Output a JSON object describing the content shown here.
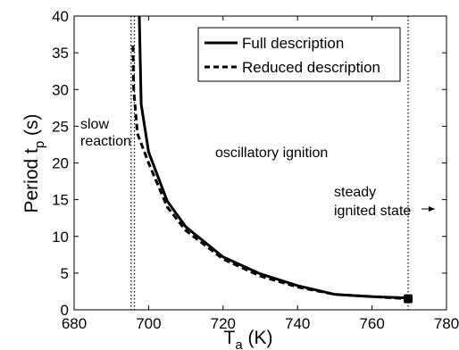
{
  "chart_data": {
    "type": "line",
    "title": "",
    "xlabel": {
      "main": "T",
      "sub": "a",
      "unit": " (K)"
    },
    "ylabel": {
      "main": "Period t",
      "sub": "p",
      "unit": " (s)"
    },
    "xlim": [
      680,
      780
    ],
    "ylim": [
      0,
      40
    ],
    "xticks": [
      680,
      700,
      720,
      740,
      760,
      780
    ],
    "yticks": [
      0,
      5,
      10,
      15,
      20,
      25,
      30,
      35,
      40
    ],
    "grid": false,
    "legend_position": "top-right",
    "series": [
      {
        "name": "Full description",
        "style": "solid",
        "color": "#000000",
        "x": [
          697.5,
          698,
          700,
          705,
          710,
          720,
          730,
          740,
          750,
          760,
          770
        ],
        "y": [
          40,
          28,
          21.5,
          14.8,
          11.3,
          7.2,
          4.9,
          3.3,
          2.1,
          1.8,
          1.6
        ]
      },
      {
        "name": "Reduced description",
        "style": "dashed",
        "color": "#000000",
        "x": [
          695.8,
          696,
          697,
          700,
          705,
          710,
          720,
          730,
          740,
          750,
          760,
          770
        ],
        "y": [
          36,
          30,
          24,
          20,
          14,
          10.8,
          6.9,
          4.6,
          3.1,
          2.1,
          1.8,
          1.5
        ]
      }
    ],
    "vlines": [
      695.3,
      696.2,
      769.7
    ],
    "endpoint_marker": {
      "x": 769.7,
      "y": 1.5
    },
    "annotations": {
      "left_line1": "slow",
      "left_line2": "reaction",
      "middle": "oscillatory ignition",
      "right_line1": "steady",
      "right_line2": "ignited state"
    }
  }
}
